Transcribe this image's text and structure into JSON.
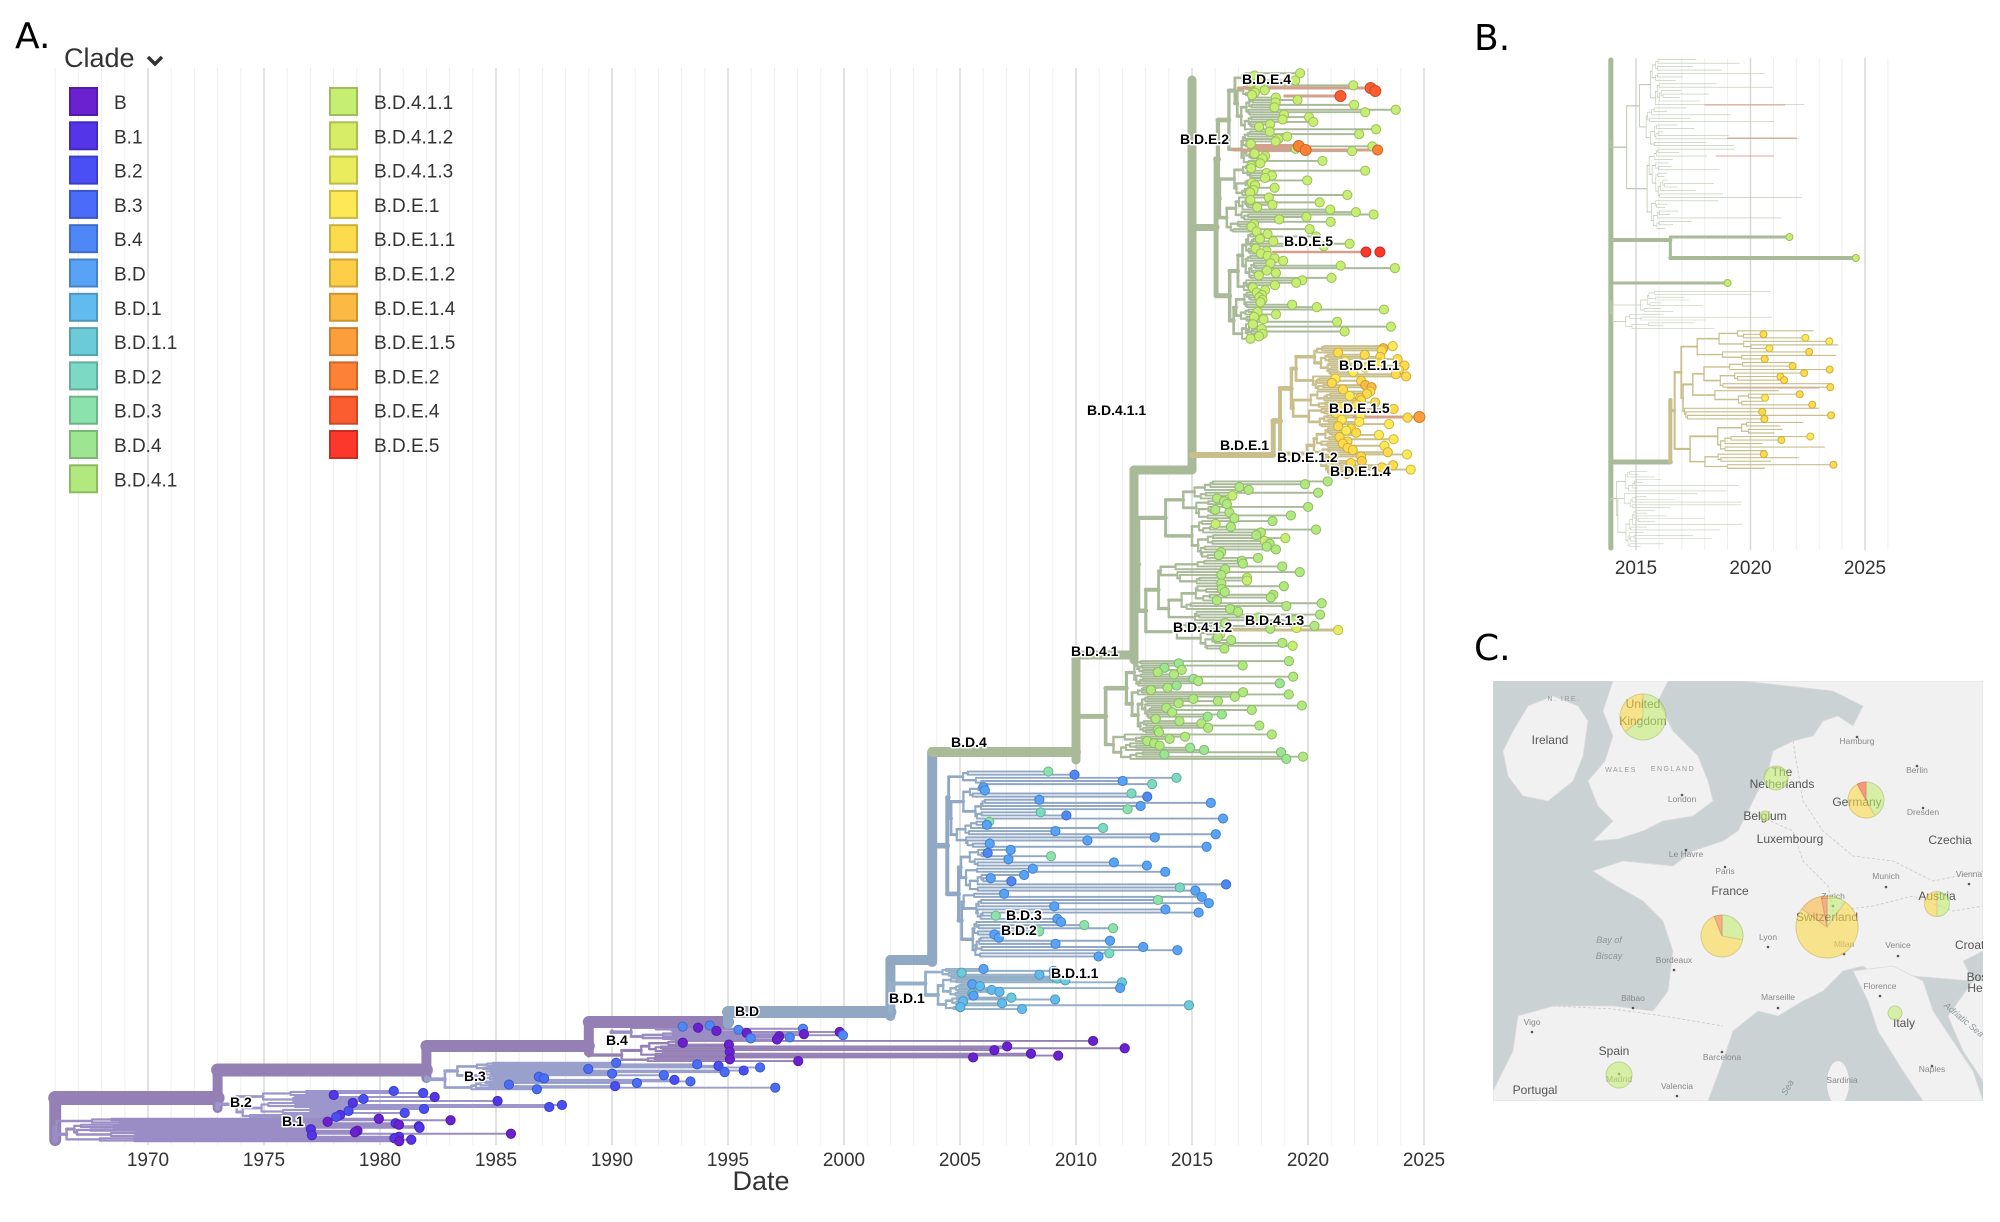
{
  "panels": {
    "a": "A.",
    "b": "B.",
    "c": "C."
  },
  "legend": {
    "title": "Clade",
    "dropdown_icon": "chevron-down-icon",
    "items": [
      {
        "label": "B",
        "color": "#6a22d0"
      },
      {
        "label": "B.1",
        "color": "#5435e8"
      },
      {
        "label": "B.2",
        "color": "#4a4ff5"
      },
      {
        "label": "B.3",
        "color": "#4a6cf8"
      },
      {
        "label": "B.4",
        "color": "#4f87f7"
      },
      {
        "label": "B.D",
        "color": "#58a2f7"
      },
      {
        "label": "B.D.1",
        "color": "#62bbee"
      },
      {
        "label": "B.D.1.1",
        "color": "#6ccbd8"
      },
      {
        "label": "B.D.2",
        "color": "#7cd9c3"
      },
      {
        "label": "B.D.3",
        "color": "#8ce2ac"
      },
      {
        "label": "B.D.4",
        "color": "#9ee592"
      },
      {
        "label": "B.D.4.1",
        "color": "#b1e97e"
      },
      {
        "label": "B.D.4.1.1",
        "color": "#c6ee72"
      },
      {
        "label": "B.D.4.1.2",
        "color": "#d8ed67"
      },
      {
        "label": "B.D.4.1.3",
        "color": "#e9ec5d"
      },
      {
        "label": "B.D.E.1",
        "color": "#fde855"
      },
      {
        "label": "B.D.E.1.1",
        "color": "#fedb4c"
      },
      {
        "label": "B.D.E.1.2",
        "color": "#fece48"
      },
      {
        "label": "B.D.E.1.4",
        "color": "#fdba42"
      },
      {
        "label": "B.D.E.1.5",
        "color": "#fd9e3c"
      },
      {
        "label": "B.D.E.2",
        "color": "#fd8236"
      },
      {
        "label": "B.D.E.4",
        "color": "#fc5d30"
      },
      {
        "label": "B.D.E.5",
        "color": "#fb3829"
      }
    ]
  },
  "tree": {
    "x_axis_label": "Date",
    "x_ticks": [
      "1970",
      "1975",
      "1980",
      "1985",
      "1990",
      "1995",
      "2000",
      "2005",
      "2010",
      "2015",
      "2020",
      "2025"
    ],
    "clade_labels": [
      "B.D.E.4",
      "B.D.E.2",
      "B.D.E.5",
      "B.D.E.1.1",
      "B.D.4.1.1",
      "B.D.E.1.5",
      "B.D.E.1",
      "B.D.E.1.2",
      "B.D.E.1.4",
      "B.D.4.1.3",
      "B.D.4.1.2",
      "B.D.4.1",
      "B.D.4",
      "B.D.3",
      "B.D.2",
      "B.D.1.1",
      "B.D.1",
      "B.D",
      "B.4",
      "B.3",
      "B.2",
      "B.1"
    ],
    "branch_colors": {
      "B": "#9580b5",
      "B.D": "#90a8c4",
      "B.D.4": "#a9ba99",
      "B.D.E.1": "#c9bf8c",
      "B.D.E.2": "#d4a08c"
    }
  },
  "panel_b": {
    "x_ticks": [
      "2015",
      "2020",
      "2025"
    ]
  },
  "map": {
    "sea_color": "#cbd2d3",
    "land_color": "#f1f1f1",
    "labels": [
      {
        "text": "Ireland",
        "type": "country"
      },
      {
        "text": "N. IRE.",
        "type": "region"
      },
      {
        "text": "United",
        "type": "country"
      },
      {
        "text": "Kingdom",
        "type": "country"
      },
      {
        "text": "WALES",
        "type": "region"
      },
      {
        "text": "ENGLAND",
        "type": "region"
      },
      {
        "text": "London",
        "type": "city"
      },
      {
        "text": "Hamburg",
        "type": "city"
      },
      {
        "text": "Berlin",
        "type": "city"
      },
      {
        "text": "The",
        "type": "country"
      },
      {
        "text": "Netherlands",
        "type": "country"
      },
      {
        "text": "Germany",
        "type": "country"
      },
      {
        "text": "Belgium",
        "type": "country"
      },
      {
        "text": "Dresden",
        "type": "city"
      },
      {
        "text": "Luxembourg",
        "type": "country"
      },
      {
        "text": "Czechia",
        "type": "country"
      },
      {
        "text": "Le Havre",
        "type": "city"
      },
      {
        "text": "Paris",
        "type": "city"
      },
      {
        "text": "France",
        "type": "country"
      },
      {
        "text": "Munich",
        "type": "city"
      },
      {
        "text": "Vienna",
        "type": "city"
      },
      {
        "text": "Austria",
        "type": "country"
      },
      {
        "text": "Zurich",
        "type": "city"
      },
      {
        "text": "Switzerland",
        "type": "country"
      },
      {
        "text": "Lyon",
        "type": "city"
      },
      {
        "text": "Milan",
        "type": "city"
      },
      {
        "text": "Venice",
        "type": "city"
      },
      {
        "text": "Croati",
        "type": "country"
      },
      {
        "text": "Bay of",
        "type": "sea"
      },
      {
        "text": "Biscay",
        "type": "sea"
      },
      {
        "text": "Bordeaux",
        "type": "city"
      },
      {
        "text": "Bos",
        "type": "country"
      },
      {
        "text": "Her",
        "type": "country"
      },
      {
        "text": "Florence",
        "type": "city"
      },
      {
        "text": "Italy",
        "type": "country"
      },
      {
        "text": "Adriatic Sea",
        "type": "sea"
      },
      {
        "text": "Bilbao",
        "type": "city"
      },
      {
        "text": "Marseille",
        "type": "city"
      },
      {
        "text": "Vigo",
        "type": "city"
      },
      {
        "text": "Spain",
        "type": "country"
      },
      {
        "text": "Madrid",
        "type": "city"
      },
      {
        "text": "Barcelona",
        "type": "city"
      },
      {
        "text": "Naples",
        "type": "city"
      },
      {
        "text": "Sardinia",
        "type": "city"
      },
      {
        "text": "Valencia",
        "type": "city"
      },
      {
        "text": "Portugal",
        "type": "country"
      },
      {
        "text": "Sea",
        "type": "sea"
      }
    ],
    "pies": [
      {
        "location": "United Kingdom",
        "slices": [
          {
            "clade": "B.D.4.1.1",
            "fraction": 0.64
          },
          {
            "clade": "B.D.E.1.1",
            "fraction": 0.36
          }
        ]
      },
      {
        "location": "The Netherlands",
        "slices": [
          {
            "clade": "B.D.4.1.1",
            "fraction": 1.0
          }
        ]
      },
      {
        "location": "Belgium",
        "slices": [
          {
            "clade": "B.D.4.1.1",
            "fraction": 1.0
          }
        ]
      },
      {
        "location": "Germany",
        "slices": [
          {
            "clade": "B.D.4.1.1",
            "fraction": 0.42
          },
          {
            "clade": "B.D.E.1.1",
            "fraction": 0.5
          },
          {
            "clade": "B.D.E.4",
            "fraction": 0.08
          }
        ]
      },
      {
        "location": "Austria",
        "slices": [
          {
            "clade": "B.D.4.1.1",
            "fraction": 0.5
          },
          {
            "clade": "B.D.E.1.1",
            "fraction": 0.5
          }
        ]
      },
      {
        "location": "Switzerland",
        "slices": [
          {
            "clade": "B.D.4.1.1",
            "fraction": 0.1
          },
          {
            "clade": "B.D.E.1.1",
            "fraction": 0.75
          },
          {
            "clade": "B.D.E.1.4",
            "fraction": 0.12
          },
          {
            "clade": "B.D.E.2",
            "fraction": 0.03
          }
        ]
      },
      {
        "location": "France",
        "slices": [
          {
            "clade": "B.D.4.1.1",
            "fraction": 0.28
          },
          {
            "clade": "B.D.E.1.1",
            "fraction": 0.66
          },
          {
            "clade": "B.D.E.2",
            "fraction": 0.06
          }
        ]
      },
      {
        "location": "Italy",
        "slices": [
          {
            "clade": "B.D.4.1.1",
            "fraction": 1.0
          }
        ]
      },
      {
        "location": "Spain",
        "slices": [
          {
            "clade": "B.D.4.1.1",
            "fraction": 1.0
          }
        ]
      }
    ]
  }
}
